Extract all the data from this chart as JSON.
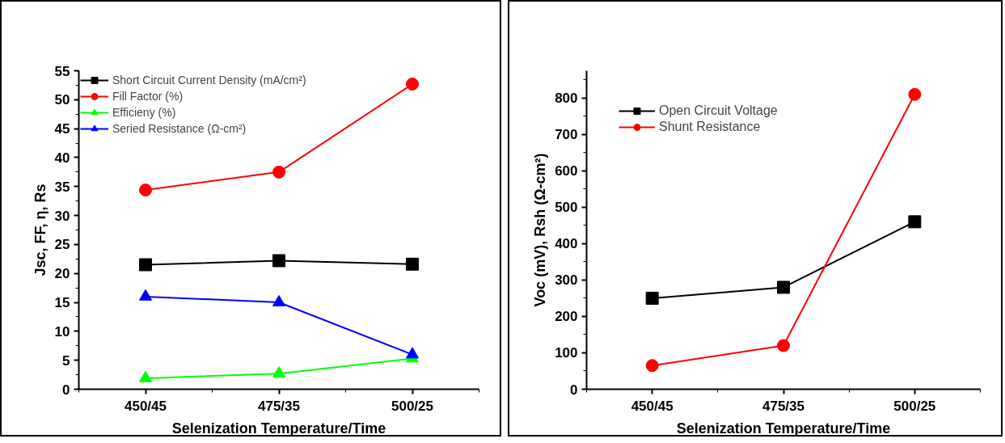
{
  "chart_data": [
    {
      "type": "line",
      "xlabel": "Selenization Temperature/Time",
      "ylabel": "Jsc, FF, η, Rs",
      "categories": [
        "450/45",
        "475/35",
        "500/25"
      ],
      "ylim": [
        0,
        55
      ],
      "yticks": [
        0,
        5,
        10,
        15,
        20,
        25,
        30,
        35,
        40,
        45,
        50,
        55
      ],
      "legend": "top left",
      "grid": false,
      "series": [
        {
          "name": "Short Circuit Current Density (mA/cm²)",
          "color": "#000000",
          "marker": "square",
          "values": [
            21.5,
            22.2,
            21.6
          ]
        },
        {
          "name": "Fill Factor (%)",
          "color": "#ff0000",
          "marker": "circle",
          "values": [
            34.4,
            37.5,
            52.7
          ]
        },
        {
          "name": "Efficieny (%)",
          "color": "#00ff00",
          "marker": "triangle",
          "values": [
            1.9,
            2.7,
            5.3
          ]
        },
        {
          "name": "Seried Resistance (Ω-cm²)",
          "color": "#0000ff",
          "marker": "triangle",
          "values": [
            16.0,
            15.0,
            6.0
          ]
        }
      ]
    },
    {
      "type": "line",
      "xlabel": "Selenization Temperature/Time",
      "ylabel": "Voc (mV), Rsh (Ω-cm²)",
      "categories": [
        "450/45",
        "475/35",
        "500/25"
      ],
      "ylim": [
        0,
        875
      ],
      "yticks": [
        0,
        100,
        200,
        300,
        400,
        500,
        600,
        700,
        800
      ],
      "legend": "top left",
      "grid": false,
      "series": [
        {
          "name": "Open Circuit Voltage",
          "color": "#000000",
          "marker": "square",
          "values": [
            250,
            280,
            460
          ]
        },
        {
          "name": "Shunt Resistance",
          "color": "#ff0000",
          "marker": "circle",
          "values": [
            65,
            120,
            810
          ]
        }
      ]
    }
  ]
}
